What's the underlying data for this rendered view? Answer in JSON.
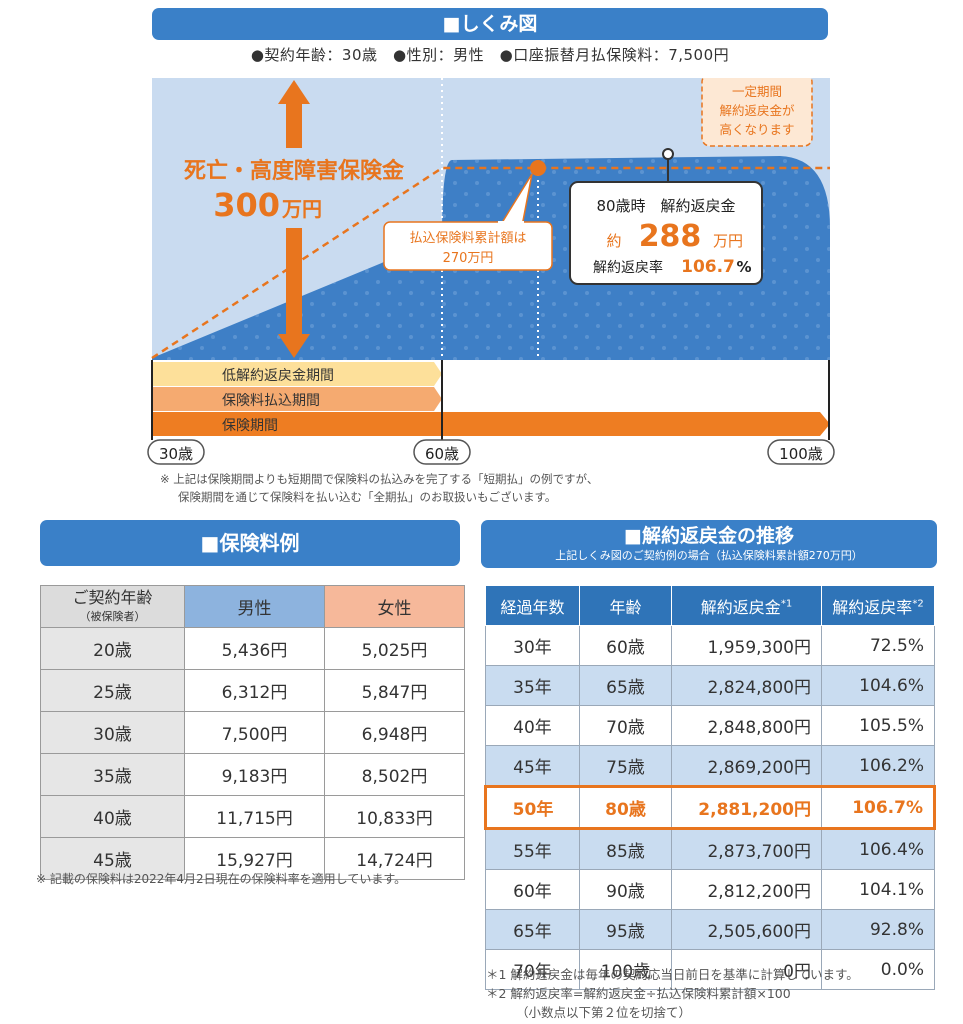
{
  "diagram": {
    "title": "■しくみ図",
    "conditions": "●契約年齢：30歳　●性別：男性　●口座振替月払保険料：7,500円",
    "death_benefit_label": "死亡・高度障害保険金",
    "death_benefit_amount": "300",
    "death_benefit_unit": "万円",
    "increase_note_l1": "一定期間",
    "increase_note_l2": "解約返戻金が",
    "increase_note_l3": "高くなります",
    "premium_total_l1": "払込保険料累計額は",
    "premium_total_l2": "270万円",
    "refund_box_l1": "80歳時　解約返戻金",
    "refund_prefix": "約",
    "refund_amount": "288",
    "refund_unit": "万円",
    "refund_rate_label": "解約返戻率",
    "refund_rate_value": "106.7",
    "refund_rate_unit": "%",
    "period_low_refund": "低解約返戻金期間",
    "period_payment": "保険料払込期間",
    "period_coverage": "保険期間",
    "age_start": "30歳",
    "age_mid": "60歳",
    "age_end": "100歳",
    "colors": {
      "accent": "#e8751e",
      "blue": "#3a80c8",
      "band_yellow": "#fde09a",
      "band_peach": "#f5aa70"
    }
  },
  "diagram_note_l1": "※ 上記は保険期間よりも短期間で保険料の払込みを完了する「短期払」の例ですが、",
  "diagram_note_l2": "保険期間を通じて保険料を払い込む「全期払」のお取扱いもございます。",
  "premium_example": {
    "title": "■保険料例",
    "header_age": "ご契約年齢",
    "header_age_sub": "（被保険者）",
    "header_male": "男性",
    "header_female": "女性",
    "rows": [
      {
        "age": "20歳",
        "male": "5,436円",
        "female": "5,025円"
      },
      {
        "age": "25歳",
        "male": "6,312円",
        "female": "5,847円"
      },
      {
        "age": "30歳",
        "male": "7,500円",
        "female": "6,948円"
      },
      {
        "age": "35歳",
        "male": "9,183円",
        "female": "8,502円"
      },
      {
        "age": "40歳",
        "male": "11,715円",
        "female": "10,833円"
      },
      {
        "age": "45歳",
        "male": "15,927円",
        "female": "14,724円"
      }
    ],
    "note": "※ 記載の保険料は2022年4月2日現在の保険料率を適用しています。"
  },
  "refund_transition": {
    "title": "■解約返戻金の推移",
    "subtitle": "上記しくみ図のご契約例の場合（払込保険料累計額270万円）",
    "headers": [
      "経過年数",
      "年齢",
      "解約返戻金",
      "解約返戻率"
    ],
    "header_marks": [
      "",
      "",
      "*1",
      "*2"
    ],
    "rows": [
      {
        "years": "30年",
        "age": "60歳",
        "refund": "1,959,300円",
        "rate": "72.5%"
      },
      {
        "years": "35年",
        "age": "65歳",
        "refund": "2,824,800円",
        "rate": "104.6%"
      },
      {
        "years": "40年",
        "age": "70歳",
        "refund": "2,848,800円",
        "rate": "105.5%"
      },
      {
        "years": "45年",
        "age": "75歳",
        "refund": "2,869,200円",
        "rate": "106.2%"
      },
      {
        "years": "50年",
        "age": "80歳",
        "refund": "2,881,200円",
        "rate": "106.7%",
        "highlight": true
      },
      {
        "years": "55年",
        "age": "85歳",
        "refund": "2,873,700円",
        "rate": "106.4%"
      },
      {
        "years": "60年",
        "age": "90歳",
        "refund": "2,812,200円",
        "rate": "104.1%"
      },
      {
        "years": "65年",
        "age": "95歳",
        "refund": "2,505,600円",
        "rate": "92.8%"
      },
      {
        "years": "70年",
        "age": "100歳",
        "refund": "0円",
        "rate": "0.0%"
      }
    ],
    "note1": "＊1 解約返戻金は毎年の契約応当日前日を基準に計算しています。",
    "note2": "＊2 解約返戻率=解約返戻金÷払込保険料累計額×100",
    "note3": "（小数点以下第２位を切捨て）"
  }
}
